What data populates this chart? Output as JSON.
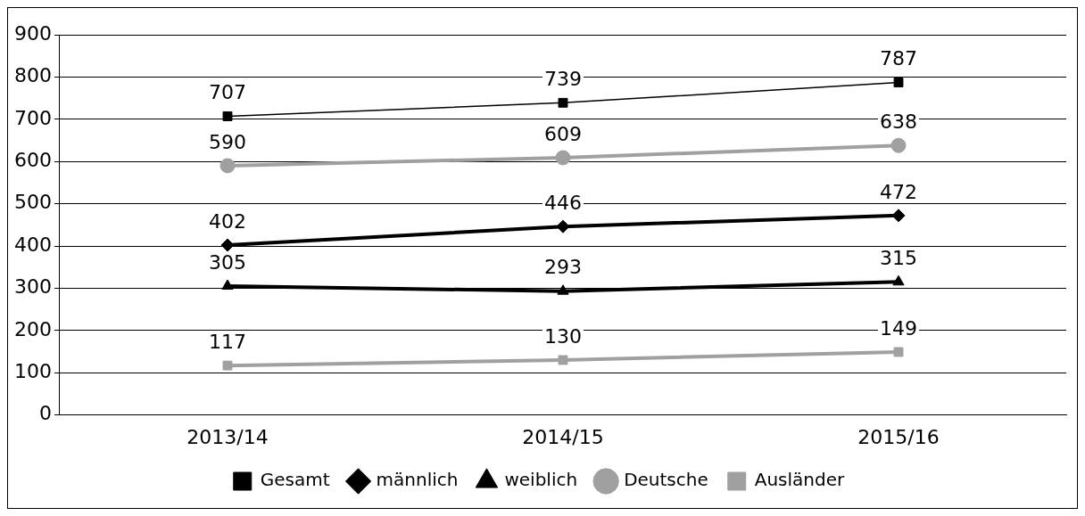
{
  "chart_data": {
    "type": "line",
    "categories": [
      "2013/14",
      "2014/15",
      "2015/16"
    ],
    "series": [
      {
        "name": "Gesamt",
        "color": "#000000",
        "values": [
          707,
          739,
          787
        ],
        "marker": "square"
      },
      {
        "name": "männlich",
        "color": "#000000",
        "values": [
          402,
          446,
          472
        ],
        "marker": "diamond"
      },
      {
        "name": "weiblich",
        "color": "#000000",
        "values": [
          305,
          293,
          315
        ],
        "marker": "triangle"
      },
      {
        "name": "Deutsche",
        "color": "#a0a0a0",
        "values": [
          590,
          609,
          638
        ],
        "marker": "circle"
      },
      {
        "name": "Ausländer",
        "color": "#a0a0a0",
        "values": [
          117,
          130,
          149
        ],
        "marker": "square"
      }
    ],
    "ylim": [
      0,
      900
    ],
    "yticks": [
      0,
      100,
      200,
      300,
      400,
      500,
      600,
      700,
      800,
      900
    ],
    "grid": "y",
    "legend": "bottom",
    "data_labels": true,
    "line_style": "solid"
  }
}
